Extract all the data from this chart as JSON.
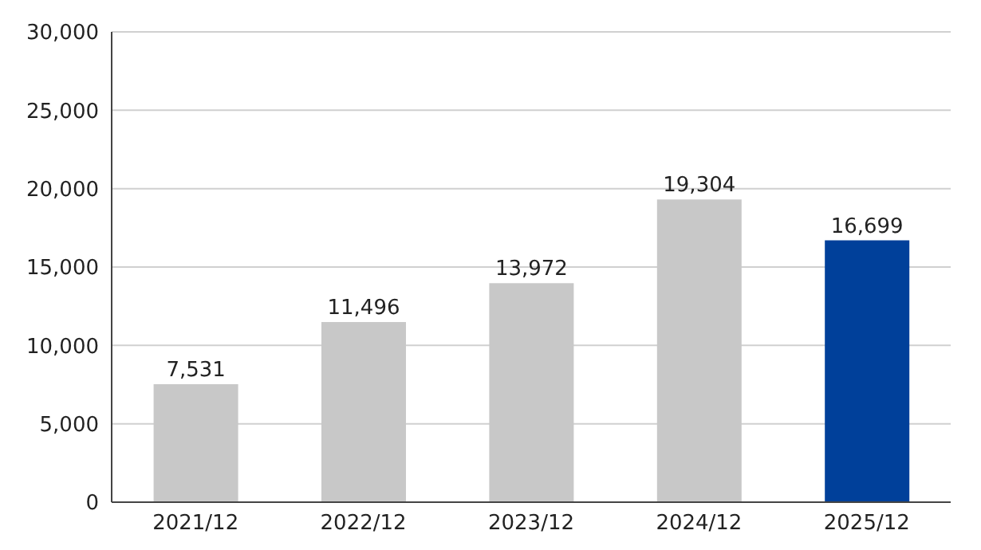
{
  "chart_data": {
    "type": "bar",
    "categories": [
      "2021/12",
      "2022/12",
      "2023/12",
      "2024/12",
      "2025/12"
    ],
    "values": [
      7531,
      11496,
      13972,
      19304,
      16699
    ],
    "colors": [
      "#c8c8c8",
      "#c8c8c8",
      "#c8c8c8",
      "#c8c8c8",
      "#00409a"
    ],
    "value_labels": [
      "7,531",
      "11,496",
      "13,972",
      "19,304",
      "16,699"
    ],
    "ylim": [
      0,
      30000
    ],
    "yticks": [
      {
        "value": 0,
        "label": "0"
      },
      {
        "value": 5000,
        "label": "5,000"
      },
      {
        "value": 10000,
        "label": "10,000"
      },
      {
        "value": 15000,
        "label": "15,000"
      },
      {
        "value": 20000,
        "label": "20,000"
      },
      {
        "value": 25000,
        "label": "25,000"
      },
      {
        "value": 30000,
        "label": "30,000"
      }
    ],
    "grid": "y",
    "legend": false
  }
}
